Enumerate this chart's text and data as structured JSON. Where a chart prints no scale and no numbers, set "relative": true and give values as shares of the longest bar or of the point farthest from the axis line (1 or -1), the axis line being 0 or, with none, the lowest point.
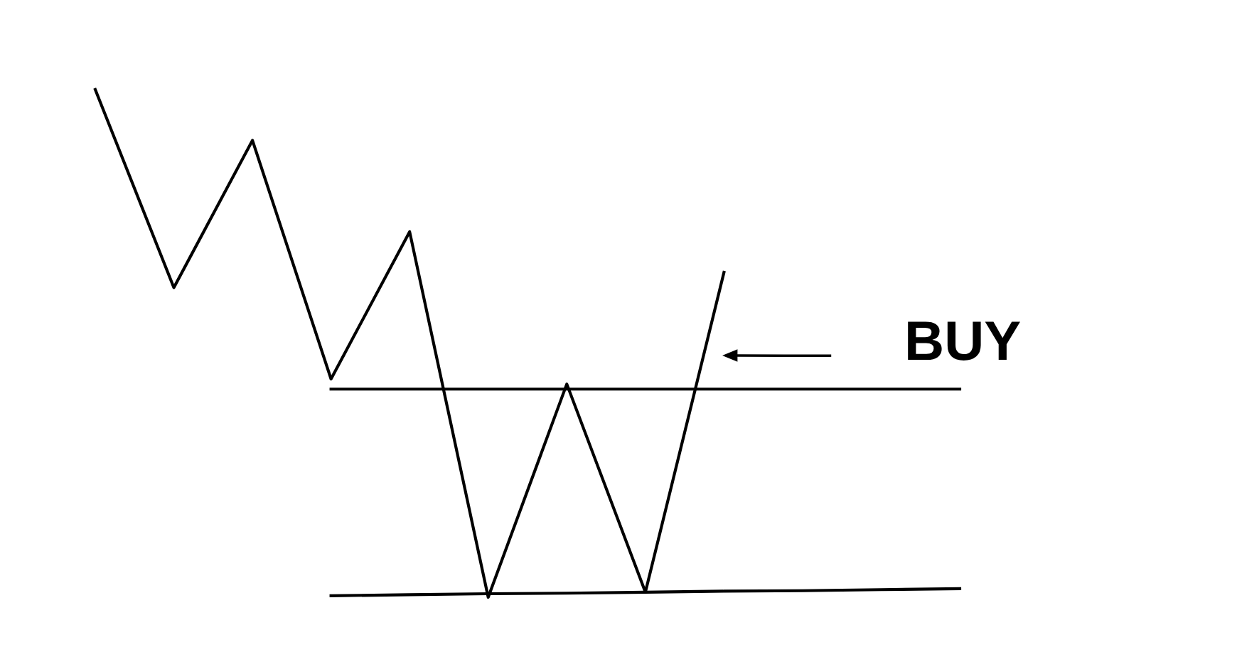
{
  "chart_data": {
    "type": "line",
    "relative": true,
    "categories": [
      null,
      null,
      null,
      null,
      null,
      null,
      null,
      null,
      null,
      null,
      null,
      null
    ],
    "series": [
      {
        "color": "#000000",
        "values": [
          1,
          0.61,
          0.9,
          0.43,
          0.72,
          0,
          0.42,
          0.01,
          0.64,
          null,
          null,
          null
        ]
      },
      {
        "type": "line",
        "color": "#000000",
        "values": [
          null,
          null,
          null,
          0.41,
          0.41,
          0.41,
          0.41,
          0.41,
          0.41,
          0.41,
          0.41,
          0.41
        ]
      },
      {
        "type": "line",
        "color": "#000000",
        "values": [
          null,
          null,
          null,
          0.003,
          0.005,
          0.007,
          0.008,
          0.01,
          0.012,
          0.013,
          0.015,
          0.017
        ]
      }
    ],
    "annotations": [
      "BUY"
    ]
  }
}
